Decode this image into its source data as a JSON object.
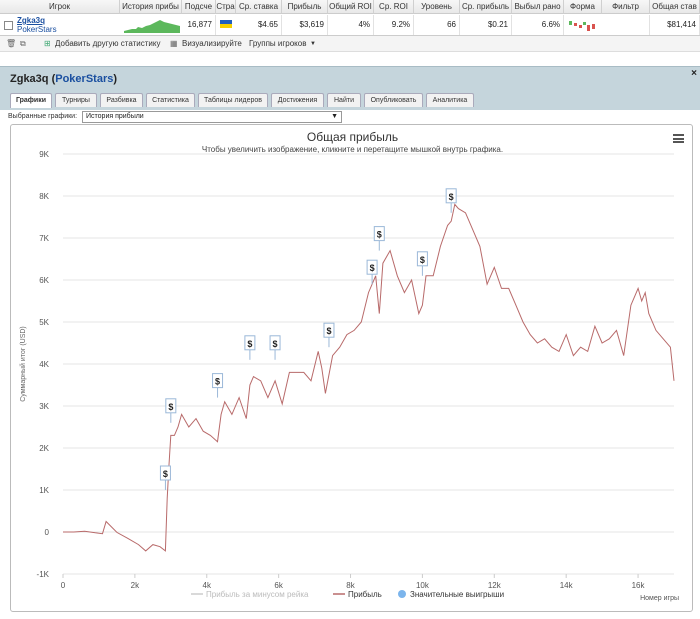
{
  "table": {
    "headers": [
      "Игрок",
      "История прибы",
      "Подсче",
      "Стра",
      "Ср. ставка",
      "Прибыль",
      "Общий ROI",
      "Ср. ROI",
      "Уровень",
      "Ср. прибыль",
      "Выбыл рано",
      "Форма",
      "Фильтр",
      "Общая став"
    ],
    "row": {
      "player": "Zgka3q",
      "site": "PokerStars",
      "count": "16,877",
      "avg_stake": "$4.65",
      "profit": "$3,619",
      "total_roi": "4%",
      "avg_roi": "9.2%",
      "level": "66",
      "avg_profit": "$0.21",
      "early_out": "6.6%",
      "total_stake": "$81,414"
    }
  },
  "toolbar": {
    "add_stats": "Добавить другую статистику",
    "visualize": "Визуализируйте",
    "player_groups": "Группы игроков"
  },
  "panel": {
    "player": "Zgka3q",
    "site": "PokerStars",
    "tabs": [
      "Графики",
      "Турниры",
      "Разбивка",
      "Статистика",
      "Таблицы лидеров",
      "Достижения",
      "Найти",
      "Опубликовать",
      "Аналитика"
    ],
    "selected_label": "Выбранные графики:",
    "selected_value": "История прибыли"
  },
  "chart_data": {
    "type": "line",
    "title": "Общая прибыль",
    "subtitle": "Чтобы увеличить изображение, кликните и перетащите мышкой внутрь графика.",
    "xlabel": "Номер игры",
    "ylabel": "Суммарный итог (USD)",
    "xlim": [
      0,
      17000
    ],
    "ylim": [
      -1000,
      9000
    ],
    "x_ticks": [
      "0",
      "2k",
      "4k",
      "6k",
      "8k",
      "10k",
      "12k",
      "14k",
      "16k"
    ],
    "y_ticks": [
      "-1K",
      "0",
      "1K",
      "2K",
      "3K",
      "4K",
      "5K",
      "6K",
      "7K",
      "8K",
      "9K"
    ],
    "legend": [
      "Прибыль за минусом рейка",
      "Прибыль",
      "Значительные выигрыши"
    ],
    "series": [
      {
        "name": "Прибыль",
        "x": [
          0,
          300,
          600,
          900,
          1100,
          1200,
          1500,
          1800,
          2100,
          2300,
          2500,
          2700,
          2850,
          2900,
          2950,
          3000,
          3100,
          3200,
          3300,
          3500,
          3700,
          3900,
          4100,
          4300,
          4400,
          4500,
          4700,
          4900,
          5100,
          5200,
          5300,
          5500,
          5700,
          5800,
          5900,
          6100,
          6300,
          6500,
          6700,
          6900,
          7100,
          7200,
          7300,
          7500,
          7700,
          7900,
          8100,
          8300,
          8500,
          8600,
          8700,
          8800,
          8900,
          9100,
          9300,
          9500,
          9700,
          9900,
          10000,
          10100,
          10300,
          10500,
          10700,
          10800,
          10900,
          11000,
          11200,
          11400,
          11600,
          11800,
          12000,
          12200,
          12400,
          12600,
          12800,
          13000,
          13200,
          13400,
          13600,
          13800,
          14000,
          14200,
          14400,
          14600,
          14800,
          15000,
          15200,
          15400,
          15600,
          15800,
          16000,
          16100,
          16200,
          16300,
          16500,
          16700,
          16900,
          17000
        ],
        "y": [
          0,
          0,
          20,
          -20,
          -40,
          250,
          -10,
          -150,
          -300,
          -450,
          -300,
          -350,
          -450,
          800,
          1600,
          2300,
          2300,
          2500,
          2800,
          2500,
          2700,
          2400,
          2300,
          2150,
          2800,
          3100,
          2800,
          3200,
          2700,
          3500,
          3700,
          3600,
          3200,
          3400,
          3600,
          3050,
          3800,
          3800,
          3800,
          3600,
          4300,
          3900,
          3300,
          4200,
          4400,
          4700,
          4800,
          5000,
          5700,
          5900,
          6100,
          5200,
          6400,
          6700,
          6100,
          5700,
          6000,
          5200,
          5400,
          6100,
          6100,
          6800,
          7300,
          7400,
          7800,
          7700,
          7600,
          7200,
          6800,
          5900,
          6300,
          5800,
          5800,
          5400,
          5000,
          4700,
          4500,
          4600,
          4400,
          4300,
          4700,
          4200,
          4400,
          4300,
          4900,
          4500,
          4600,
          4800,
          4200,
          5400,
          5800,
          5500,
          5700,
          5200,
          4800,
          4600,
          4400,
          3600
        ]
      }
    ],
    "big_wins": [
      [
        2850,
        1000
      ],
      [
        3000,
        2600
      ],
      [
        4300,
        3200
      ],
      [
        5200,
        4100
      ],
      [
        5900,
        4100
      ],
      [
        7400,
        4400
      ],
      [
        8600,
        5900
      ],
      [
        8800,
        6700
      ],
      [
        10000,
        6100
      ],
      [
        10800,
        7600
      ]
    ]
  }
}
